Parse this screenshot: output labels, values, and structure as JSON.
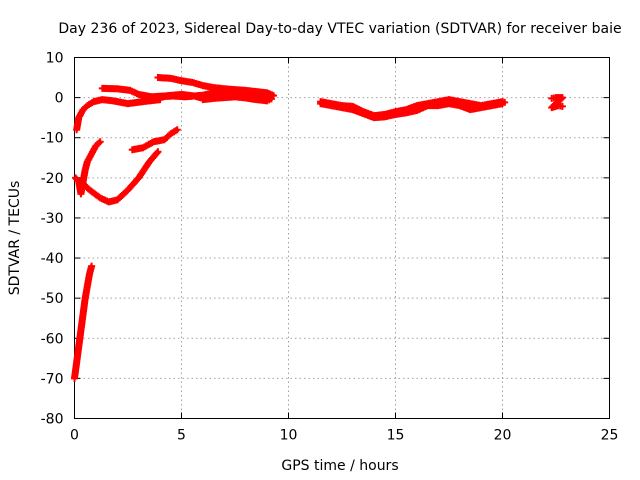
{
  "chart_data": {
    "type": "scatter",
    "title": "Day 236 of 2023, Sidereal Day-to-day VTEC variation (SDTVAR) for receiver baie",
    "xlabel": "GPS time / hours",
    "ylabel": "SDTVAR / TECUs",
    "xlim": [
      0,
      25
    ],
    "ylim": [
      -80,
      10
    ],
    "xticks": [
      0,
      5,
      10,
      15,
      20,
      25
    ],
    "yticks": [
      -80,
      -70,
      -60,
      -50,
      -40,
      -30,
      -20,
      -10,
      0,
      10
    ],
    "grid": true,
    "marker": "plus",
    "series_color": "#ff0000",
    "segments": [
      {
        "name": "early-steep",
        "points": [
          [
            0.0,
            -70
          ],
          [
            0.1,
            -66
          ],
          [
            0.2,
            -62
          ],
          [
            0.3,
            -58
          ],
          [
            0.4,
            -54
          ],
          [
            0.5,
            -50
          ],
          [
            0.6,
            -47
          ],
          [
            0.7,
            -44
          ],
          [
            0.8,
            -42
          ]
        ]
      },
      {
        "name": "early-rise-a",
        "points": [
          [
            0.05,
            -20
          ],
          [
            0.2,
            -21
          ],
          [
            0.3,
            -24
          ],
          [
            0.4,
            -21
          ],
          [
            0.5,
            -18
          ],
          [
            0.6,
            -16
          ],
          [
            0.8,
            -14
          ],
          [
            1.0,
            -12
          ],
          [
            1.2,
            -11
          ]
        ]
      },
      {
        "name": "early-rise-b",
        "points": [
          [
            0.1,
            -8
          ],
          [
            0.2,
            -5
          ],
          [
            0.4,
            -3
          ],
          [
            0.6,
            -2
          ],
          [
            0.9,
            -1
          ],
          [
            1.3,
            -0.5
          ],
          [
            1.8,
            -0.8
          ],
          [
            2.5,
            -1.5
          ],
          [
            3.2,
            -1
          ],
          [
            4.0,
            -0.5
          ]
        ]
      },
      {
        "name": "dip-rise",
        "points": [
          [
            0.3,
            -21
          ],
          [
            0.7,
            -23
          ],
          [
            1.2,
            -25
          ],
          [
            1.6,
            -26
          ],
          [
            2.0,
            -25.5
          ],
          [
            2.5,
            -23
          ],
          [
            3.0,
            -20
          ],
          [
            3.5,
            -16
          ],
          [
            3.9,
            -13.5
          ]
        ]
      },
      {
        "name": "mid-rise",
        "points": [
          [
            2.7,
            -13
          ],
          [
            3.2,
            -12.5
          ],
          [
            3.7,
            -11
          ],
          [
            4.2,
            -10.5
          ],
          [
            4.5,
            -9
          ],
          [
            4.8,
            -8
          ]
        ]
      },
      {
        "name": "hump",
        "points": [
          [
            1.3,
            2.3
          ],
          [
            2.0,
            2.2
          ],
          [
            2.6,
            1.8
          ],
          [
            3.0,
            0.8
          ],
          [
            3.6,
            0.2
          ],
          [
            4.2,
            0.4
          ],
          [
            5.0,
            0.8
          ],
          [
            5.6,
            0.4
          ],
          [
            6.0,
            -0.2
          ]
        ]
      },
      {
        "name": "morning-band-upper",
        "points": [
          [
            3.9,
            5
          ],
          [
            4.5,
            4.8
          ],
          [
            5.0,
            4.2
          ],
          [
            5.5,
            3.8
          ],
          [
            6.0,
            3.0
          ],
          [
            6.5,
            2.5
          ],
          [
            7.0,
            2.2
          ],
          [
            7.5,
            2.0
          ],
          [
            8.0,
            1.8
          ],
          [
            8.5,
            1.5
          ],
          [
            9.0,
            1.2
          ],
          [
            9.3,
            0.5
          ]
        ]
      },
      {
        "name": "morning-band-lower",
        "points": [
          [
            4.0,
            0.2
          ],
          [
            4.6,
            0.4
          ],
          [
            5.2,
            0.2
          ],
          [
            6.0,
            0.6
          ],
          [
            6.5,
            1.2
          ],
          [
            7.0,
            1.5
          ],
          [
            7.5,
            1.6
          ],
          [
            8.0,
            0.8
          ],
          [
            8.5,
            0.3
          ],
          [
            9.0,
            0.0
          ]
        ]
      },
      {
        "name": "morning-band-return",
        "points": [
          [
            6.0,
            -0.5
          ],
          [
            6.5,
            -0.2
          ],
          [
            7.0,
            0.0
          ],
          [
            7.5,
            0.2
          ],
          [
            8.0,
            -0.1
          ],
          [
            8.5,
            -0.5
          ],
          [
            9.0,
            -0.8
          ],
          [
            9.2,
            -0.3
          ]
        ]
      },
      {
        "name": "afternoon-lower",
        "points": [
          [
            11.5,
            -1.5
          ],
          [
            12.0,
            -2.0
          ],
          [
            12.5,
            -2.5
          ],
          [
            13.0,
            -3.0
          ],
          [
            13.5,
            -4.0
          ],
          [
            14.0,
            -5.0
          ],
          [
            14.5,
            -4.8
          ],
          [
            15.0,
            -4.2
          ],
          [
            15.5,
            -3.8
          ],
          [
            16.0,
            -3.2
          ],
          [
            16.5,
            -2.0
          ],
          [
            17.0,
            -2.0
          ],
          [
            17.5,
            -1.5
          ],
          [
            18.0,
            -2.0
          ],
          [
            18.5,
            -3.0
          ],
          [
            19.0,
            -2.5
          ],
          [
            19.5,
            -2.0
          ],
          [
            20.0,
            -1.5
          ]
        ]
      },
      {
        "name": "afternoon-upper",
        "points": [
          [
            11.5,
            -1.0
          ],
          [
            12.0,
            -1.5
          ],
          [
            12.5,
            -2.0
          ],
          [
            13.0,
            -2.2
          ],
          [
            13.5,
            -3.5
          ],
          [
            14.0,
            -4.5
          ],
          [
            14.5,
            -4.2
          ],
          [
            15.0,
            -3.5
          ],
          [
            15.5,
            -3.0
          ],
          [
            16.0,
            -2.0
          ],
          [
            16.5,
            -1.5
          ],
          [
            17.0,
            -1.0
          ],
          [
            17.5,
            -0.5
          ],
          [
            18.0,
            -1.0
          ],
          [
            18.5,
            -1.5
          ],
          [
            19.0,
            -2.0
          ],
          [
            19.5,
            -1.5
          ],
          [
            20.0,
            -1.0
          ],
          [
            20.1,
            -1.2
          ]
        ]
      },
      {
        "name": "late",
        "points": [
          [
            22.3,
            -0.2
          ],
          [
            22.5,
            0.0
          ],
          [
            22.8,
            0.0
          ],
          [
            22.3,
            -2.5
          ],
          [
            22.6,
            -2.0
          ],
          [
            22.8,
            -2.2
          ]
        ]
      }
    ]
  }
}
